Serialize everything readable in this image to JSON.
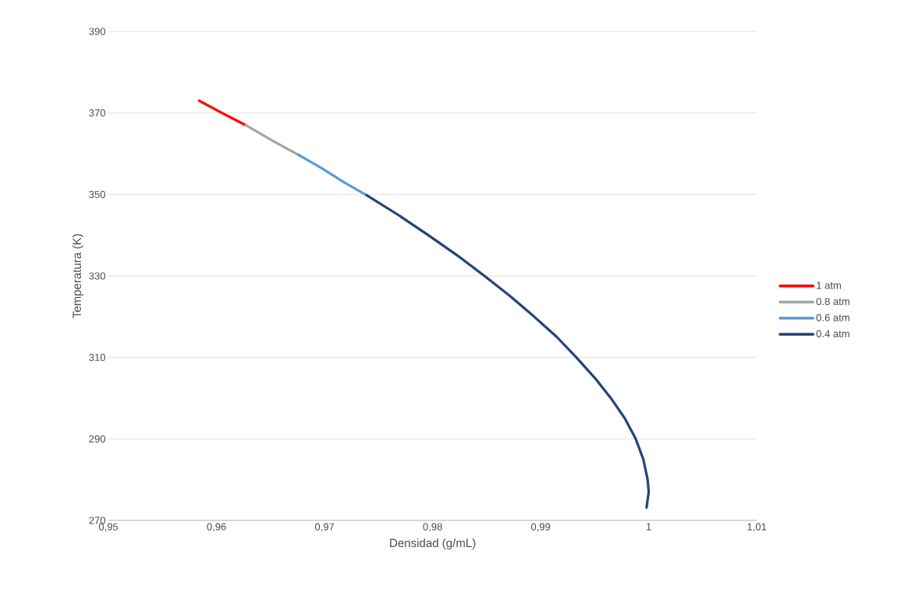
{
  "chart_data": {
    "type": "line",
    "xlabel": "Densidad (g/mL)",
    "ylabel": "Temperatura (K)",
    "xlim": [
      0.95,
      1.01
    ],
    "xticks": [
      {
        "value": 0.95,
        "label": "0,95"
      },
      {
        "value": 0.96,
        "label": "0,96"
      },
      {
        "value": 0.97,
        "label": "0,97"
      },
      {
        "value": 0.98,
        "label": "0,98"
      },
      {
        "value": 0.99,
        "label": "0,99"
      },
      {
        "value": 1,
        "label": "1"
      },
      {
        "value": 1.01,
        "label": "1,01"
      }
    ],
    "ylim": [
      270,
      390
    ],
    "yticks": [
      270,
      290,
      310,
      330,
      350,
      370,
      390
    ],
    "grid": "y",
    "legend": "right",
    "marker": "none",
    "line_style": "solid",
    "series": [
      {
        "name": "1 atm",
        "color": "#ff0000",
        "x": [
          0.9627,
          0.9605,
          0.9584
        ],
        "values": [
          367,
          370,
          373
        ]
      },
      {
        "name": "0.8 atm",
        "color": "#a5a5a5",
        "x": [
          0.9676,
          0.9653,
          0.9627
        ],
        "values": [
          359.7,
          363,
          367
        ]
      },
      {
        "name": "0.6 atm",
        "color": "#5b9bd5",
        "x": [
          0.9739,
          0.9718,
          0.9697,
          0.9676
        ],
        "values": [
          349.8,
          353,
          356.5,
          359.7
        ]
      },
      {
        "name": "0.4 atm",
        "color": "#264478",
        "x": [
          0.9998,
          0.9999,
          1.0,
          0.9999,
          0.9995,
          0.9988,
          0.9978,
          0.9965,
          0.995,
          0.9933,
          0.9915,
          0.9894,
          0.9872,
          0.9848,
          0.9823,
          0.9796,
          0.9768,
          0.9739
        ],
        "values": [
          273.15,
          275,
          277,
          280,
          285,
          290,
          295,
          300,
          305,
          310,
          315,
          320,
          325,
          330,
          335,
          340,
          345,
          349.8
        ]
      }
    ]
  }
}
